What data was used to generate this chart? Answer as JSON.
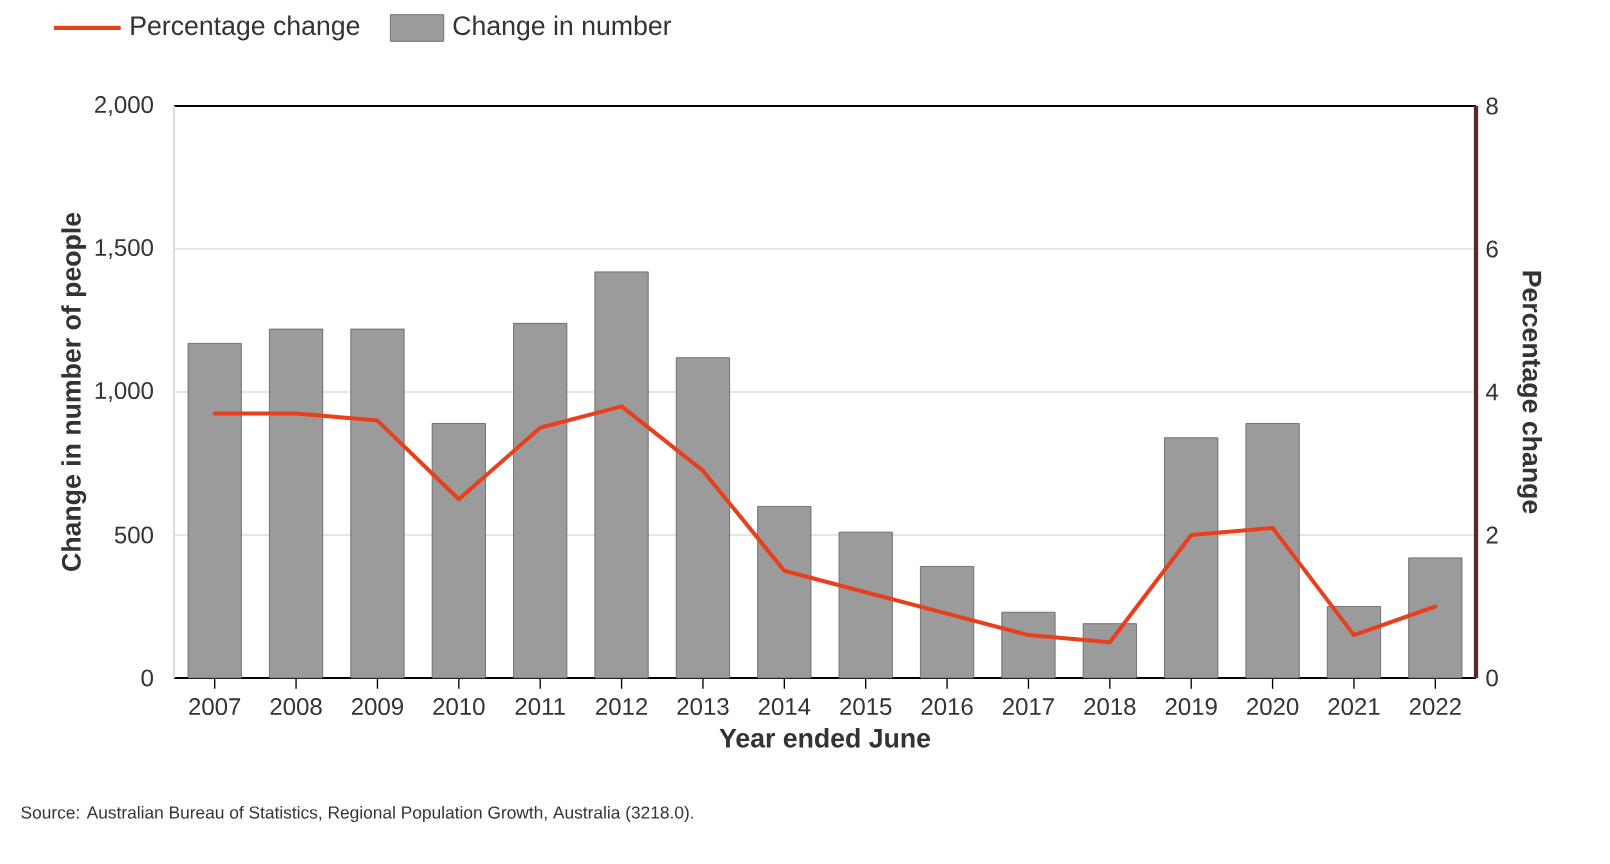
{
  "chart_data": {
    "type": "bar",
    "xlabel": "Year ended June",
    "ylabel": "Change in number of people",
    "y2label": "Percentage change",
    "categories": [
      "2007",
      "2008",
      "2009",
      "2010",
      "2011",
      "2012",
      "2013",
      "2014",
      "2015",
      "2016",
      "2017",
      "2018",
      "2019",
      "2020",
      "2021",
      "2022"
    ],
    "series": [
      {
        "name": "Percentage change",
        "type": "line",
        "axis": "y2",
        "color": "#e8401c",
        "values": [
          3.7,
          3.7,
          3.6,
          2.5,
          3.5,
          3.8,
          2.9,
          1.5,
          1.2,
          0.9,
          0.6,
          0.5,
          2.0,
          2.1,
          0.6,
          1.0
        ]
      },
      {
        "name": "Change in number",
        "color": "#9b9b9b",
        "values": [
          1170,
          1220,
          1220,
          890,
          1240,
          1420,
          1120,
          600,
          510,
          390,
          230,
          190,
          840,
          890,
          250,
          420
        ]
      }
    ],
    "ylim": [
      0,
      2000
    ],
    "yticks": [
      0,
      500,
      {
        "value": 1000,
        "label": "1,000"
      },
      {
        "value": 1500,
        "label": "1,500"
      },
      {
        "value": 2000,
        "label": "2,000"
      }
    ],
    "y2lim": [
      0,
      8
    ],
    "y2ticks": [
      0,
      2,
      4,
      6,
      8
    ],
    "grid": "y",
    "legend": "top left",
    "annotations": [
      "Source: Australian Bureau of Statistics, Regional Population Growth, Australia (3218.0)."
    ]
  }
}
